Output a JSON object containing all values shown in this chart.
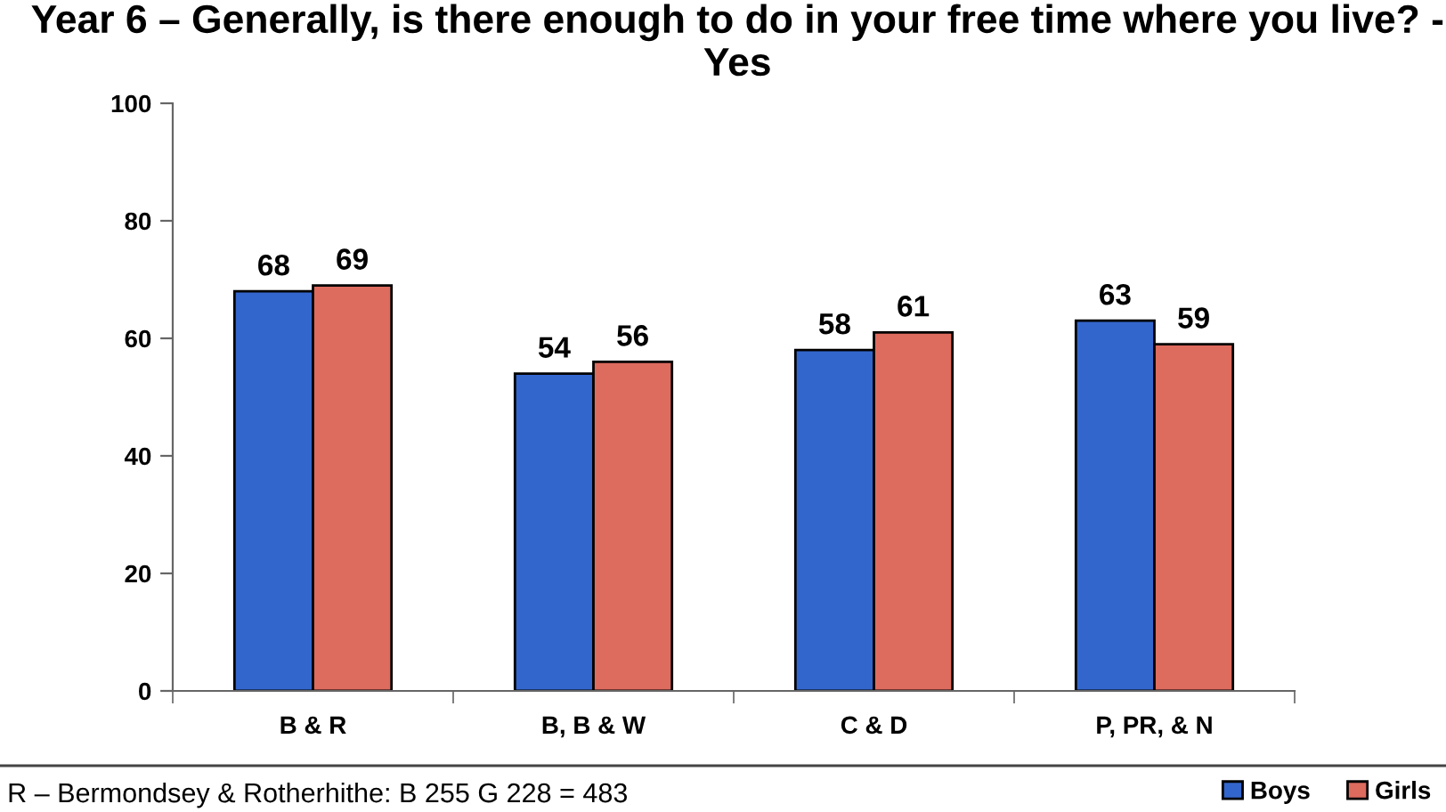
{
  "chart_data": {
    "type": "bar",
    "title": "Year 6 – Generally, is there enough to do in your free time where you live? - Yes",
    "categories": [
      "B & R",
      "B, B & W",
      "C & D",
      "P, PR, & N"
    ],
    "series": [
      {
        "name": "Boys",
        "color": "#3366cc",
        "values": [
          68,
          54,
          58,
          63
        ]
      },
      {
        "name": "Girls",
        "color": "#dd6b5e",
        "values": [
          69,
          56,
          61,
          59
        ]
      }
    ],
    "ylim": [
      0,
      100
    ],
    "yticks": [
      0,
      20,
      40,
      60,
      80,
      100
    ],
    "grid": false,
    "legend": "bottom right",
    "data_labels": true,
    "annotations": [
      "R – Bermondsey & Rotherhithe: B 255 G 228 = 483"
    ]
  }
}
